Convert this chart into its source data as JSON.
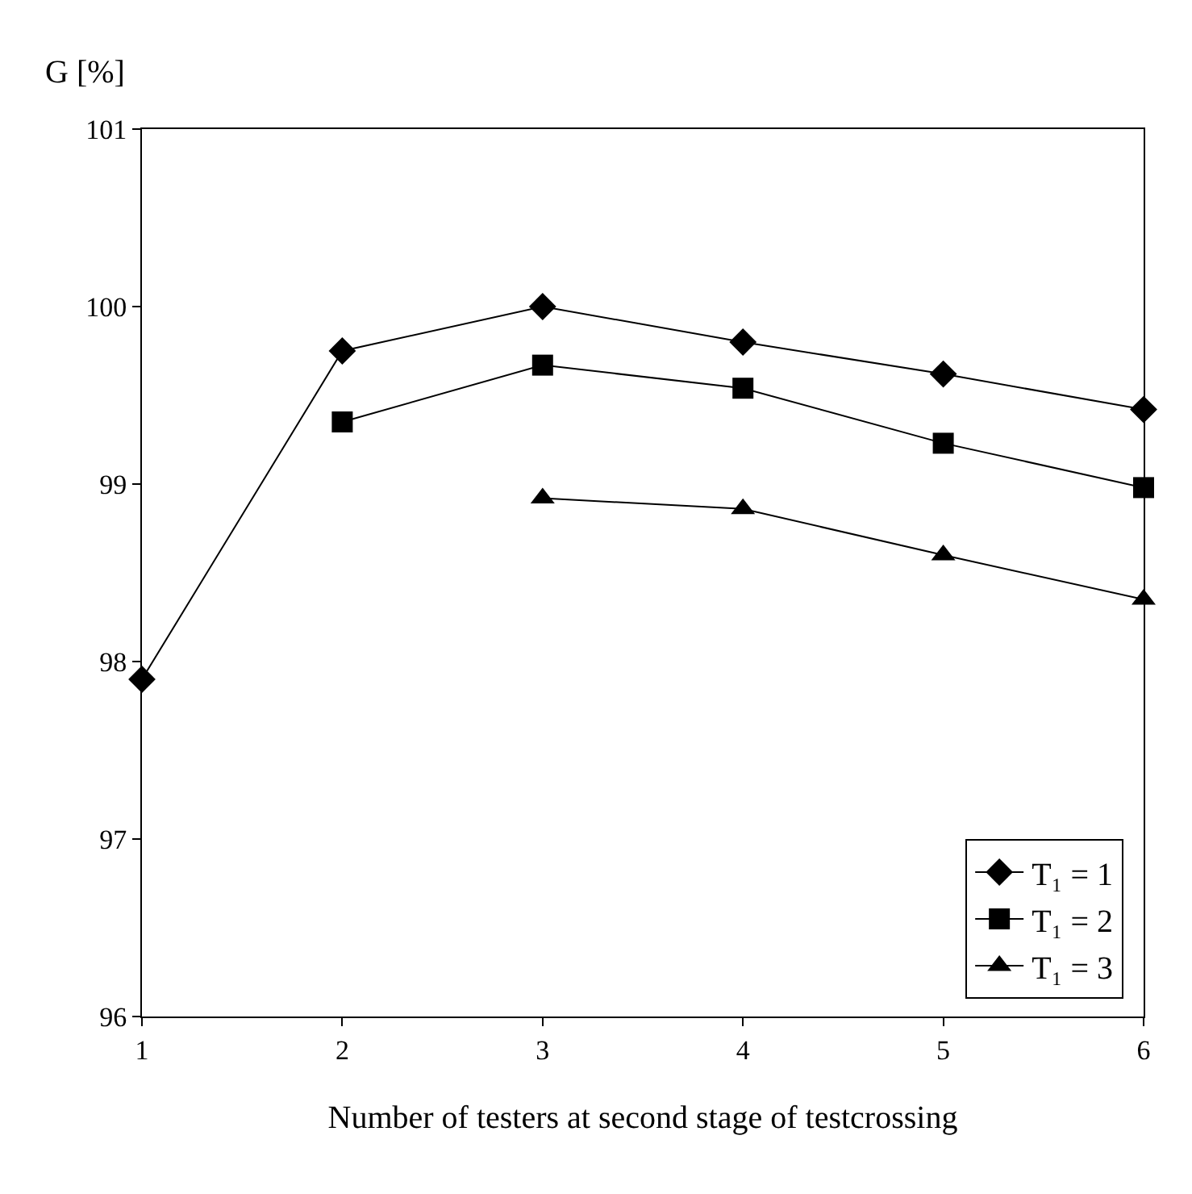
{
  "chart_data": {
    "type": "line",
    "ylabel": "G [%]",
    "xlabel": "Number of testers at second stage of testcrossing",
    "series": [
      {
        "name": "T₁ = 1",
        "color": "#000000",
        "marker": "diamond",
        "x": [
          1,
          2,
          3,
          4,
          5,
          6
        ],
        "values": [
          97.9,
          99.75,
          100.0,
          99.8,
          99.62,
          99.42
        ]
      },
      {
        "name": "T₁ = 2",
        "color": "#000000",
        "marker": "square",
        "x": [
          2,
          3,
          4,
          5,
          6
        ],
        "values": [
          99.35,
          99.67,
          99.54,
          99.23,
          98.98
        ]
      },
      {
        "name": "T₁ = 3",
        "color": "#000000",
        "marker": "triangle",
        "x": [
          3,
          4,
          5,
          6
        ],
        "values": [
          98.92,
          98.86,
          98.6,
          98.35
        ]
      }
    ],
    "xlim": [
      1,
      6
    ],
    "xticks": [
      1,
      2,
      3,
      4,
      5,
      6
    ],
    "ylim": [
      96,
      101
    ],
    "yticks": [
      96,
      97,
      98,
      99,
      100,
      101
    ],
    "legend": "bottom right",
    "line_style": "solid"
  }
}
